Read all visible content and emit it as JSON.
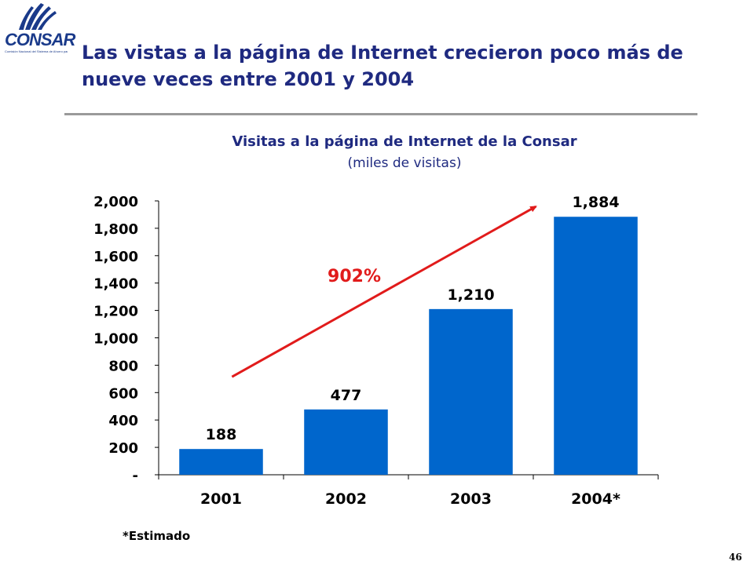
{
  "logo": {
    "word_prefix": "CON",
    "word_suffix": "SAR",
    "subtext": "Comisión Nacional del Sistema de Ahorro para el Retiro"
  },
  "slide": {
    "title": "Las vistas a la página de Internet crecieron poco más de nueve veces entre 2001 y 2004",
    "footnote": "*Estimado",
    "page_number": "46"
  },
  "colors": {
    "title": "#1f2a80",
    "bar": "#0066cc",
    "growth_arrow": "#e11b1b",
    "rule": "#9a9a9a"
  },
  "chart_data": {
    "type": "bar",
    "title": "Visitas a la página de Internet de la Consar",
    "subtitle": "(miles de visitas)",
    "categories": [
      "2001",
      "2002",
      "2003",
      "2004*"
    ],
    "values": [
      188,
      477,
      1210,
      1884
    ],
    "data_labels": [
      "188",
      "477",
      "1,210",
      "1,884"
    ],
    "ylim": [
      0,
      2000
    ],
    "yticks": [
      0,
      200,
      400,
      600,
      800,
      1000,
      1200,
      1400,
      1600,
      1800,
      2000
    ],
    "ytick_labels": [
      "-",
      "200",
      "400",
      "600",
      "800",
      "1,000",
      "1,200",
      "1,400",
      "1,600",
      "1,800",
      "2,000"
    ],
    "grid": false,
    "annotation": {
      "text": "902%",
      "kind": "growth-arrow",
      "from_category": "2001",
      "to_category": "2004*"
    }
  }
}
